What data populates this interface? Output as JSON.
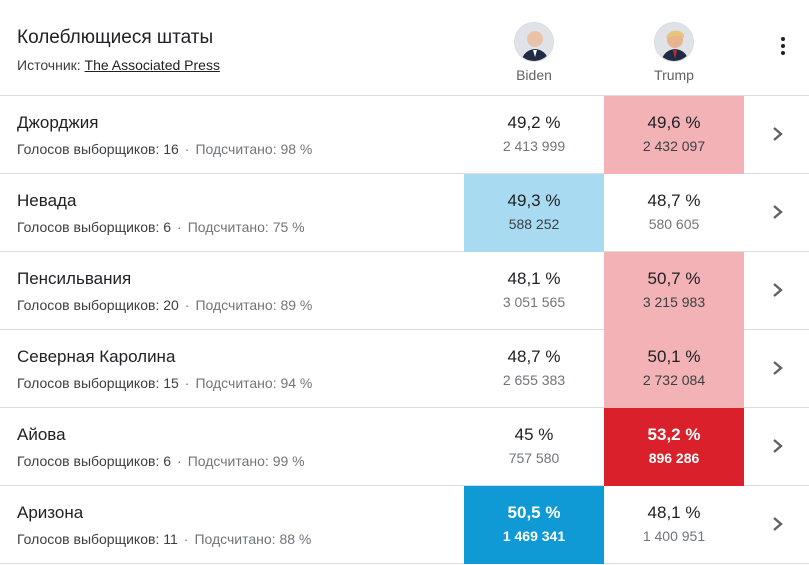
{
  "header": {
    "title": "Колеблющиеся штаты",
    "source_label": "Источник:",
    "source_link": "The Associated Press",
    "candidates": [
      {
        "name": "Biden",
        "color": "#a8dbf2",
        "win_color": "#0f9ad6"
      },
      {
        "name": "Trump",
        "color": "#f2b2b6",
        "win_color": "#d9202b"
      }
    ]
  },
  "rows": [
    {
      "state": "Джорджия",
      "electors": "Голосов выборщиков: 16",
      "counted": "Подсчитано: 98 %",
      "biden": {
        "pct": "49,2 %",
        "votes": "2 413 999"
      },
      "trump": {
        "pct": "49,6 %",
        "votes": "2 432 097"
      },
      "highlight": "trump-lead"
    },
    {
      "state": "Невада",
      "electors": "Голосов выборщиков: 6",
      "counted": "Подсчитано: 75 %",
      "biden": {
        "pct": "49,3 %",
        "votes": "588 252"
      },
      "trump": {
        "pct": "48,7 %",
        "votes": "580 605"
      },
      "highlight": "biden-lead"
    },
    {
      "state": "Пенсильвания",
      "electors": "Голосов выборщиков: 20",
      "counted": "Подсчитано: 89 %",
      "biden": {
        "pct": "48,1 %",
        "votes": "3 051 565"
      },
      "trump": {
        "pct": "50,7 %",
        "votes": "3 215 983"
      },
      "highlight": "trump-lead"
    },
    {
      "state": "Северная Каролина",
      "electors": "Голосов выборщиков: 15",
      "counted": "Подсчитано: 94 %",
      "biden": {
        "pct": "48,7 %",
        "votes": "2 655 383"
      },
      "trump": {
        "pct": "50,1 %",
        "votes": "2 732 084"
      },
      "highlight": "trump-lead"
    },
    {
      "state": "Айова",
      "electors": "Голосов выборщиков: 6",
      "counted": "Подсчитано: 99 %",
      "biden": {
        "pct": "45 %",
        "votes": "757 580"
      },
      "trump": {
        "pct": "53,2 %",
        "votes": "896 286"
      },
      "highlight": "trump-win"
    },
    {
      "state": "Аризона",
      "electors": "Голосов выборщиков: 11",
      "counted": "Подсчитано: 88 %",
      "biden": {
        "pct": "50,5 %",
        "votes": "1 469 341"
      },
      "trump": {
        "pct": "48,1 %",
        "votes": "1 400 951"
      },
      "highlight": "biden-win"
    }
  ],
  "icons": {
    "menu": "more-vert-icon",
    "row_arrow": "chevron-right-icon"
  }
}
